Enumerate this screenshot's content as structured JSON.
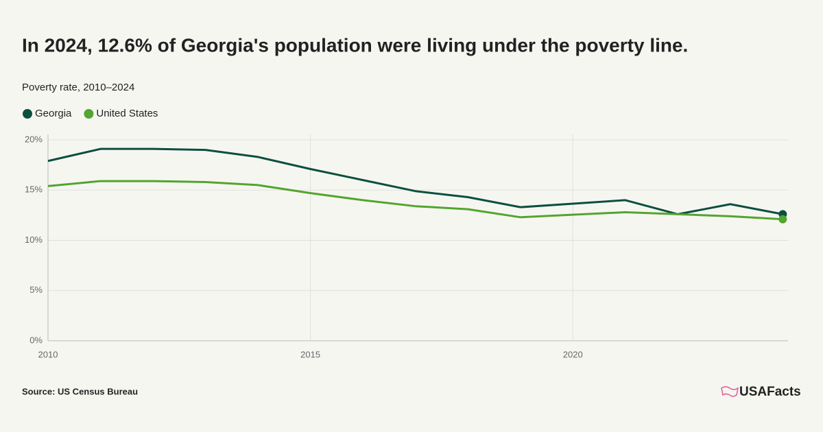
{
  "chart_data": {
    "type": "line",
    "title": "In 2024, 12.6% of Georgia's population were living under the poverty line.",
    "subtitle": "Poverty rate, 2010–2024",
    "source": "Source: US Census Bureau",
    "brand": "USAFacts",
    "x": [
      2010,
      2011,
      2012,
      2013,
      2014,
      2015,
      2016,
      2017,
      2018,
      2019,
      2021,
      2022,
      2023,
      2024
    ],
    "series": [
      {
        "name": "Georgia",
        "color": "#0b4f3f",
        "values": [
          17.9,
          19.1,
          19.1,
          19.0,
          18.3,
          17.1,
          16.0,
          14.9,
          14.3,
          13.3,
          14.0,
          12.6,
          13.6,
          12.6
        ]
      },
      {
        "name": "United States",
        "color": "#52a52e",
        "values": [
          15.4,
          15.9,
          15.9,
          15.8,
          15.5,
          14.7,
          14.0,
          13.4,
          13.1,
          12.3,
          12.8,
          12.6,
          12.4,
          12.1
        ]
      }
    ],
    "xlim": [
      2010,
      2024.1
    ],
    "xticks": [
      2010,
      2015,
      2020
    ],
    "ylim": [
      0,
      20
    ],
    "yticks": [
      {
        "value": 0,
        "label": "0%"
      },
      {
        "value": 5,
        "label": "5%"
      },
      {
        "value": 10,
        "label": "10%"
      },
      {
        "value": 15,
        "label": "15%"
      },
      {
        "value": 20,
        "label": "20%"
      }
    ],
    "grid": true
  }
}
